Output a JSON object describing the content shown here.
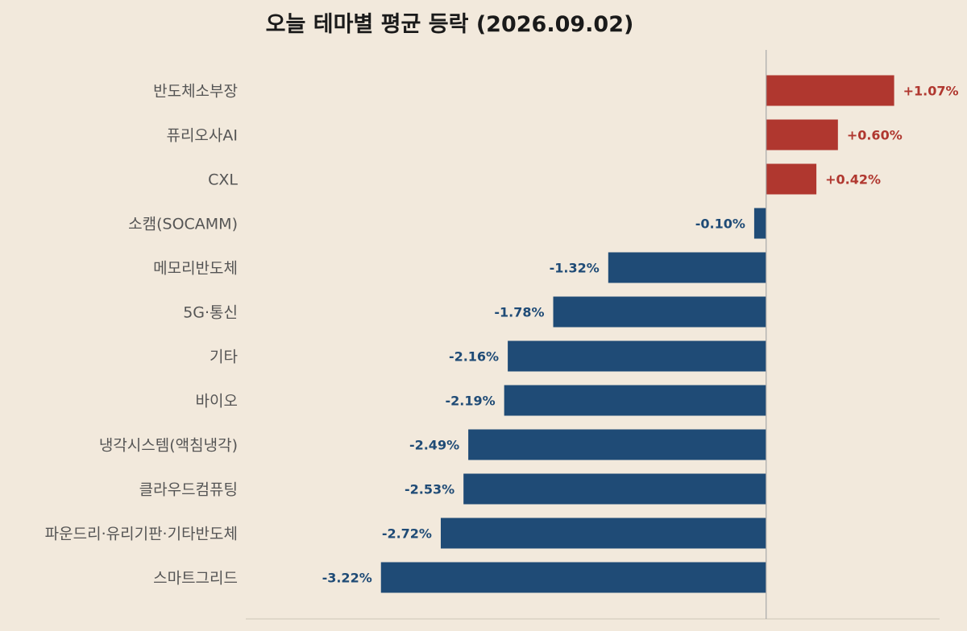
{
  "chart_data": {
    "type": "bar",
    "orientation": "horizontal",
    "title": "오늘 테마별 평균 등락  (2026.09.02)",
    "categories": [
      "반도체소부장",
      "퓨리오사AI",
      "CXL",
      "소캠(SOCAMM)",
      "메모리반도체",
      "5G·통신",
      "기타",
      "바이오",
      "냉각시스템(액침냉각)",
      "클라우드컴퓨팅",
      "파운드리·유리기판·기타반도체",
      "스마트그리드"
    ],
    "values": [
      1.07,
      0.6,
      0.42,
      -0.1,
      -1.32,
      -1.78,
      -2.16,
      -2.19,
      -2.49,
      -2.53,
      -2.72,
      -3.22
    ],
    "value_labels": [
      "+1.07%",
      "+0.60%",
      "+0.42%",
      "-0.10%",
      "-1.32%",
      "-1.78%",
      "-2.16%",
      "-2.19%",
      "-2.49%",
      "-2.53%",
      "-2.72%",
      "-3.22%"
    ],
    "xlim": [
      -4.35,
      1.45
    ],
    "grid": false,
    "legend": "none",
    "colors": {
      "positive": "#b0372f",
      "negative": "#1f4b76"
    }
  }
}
